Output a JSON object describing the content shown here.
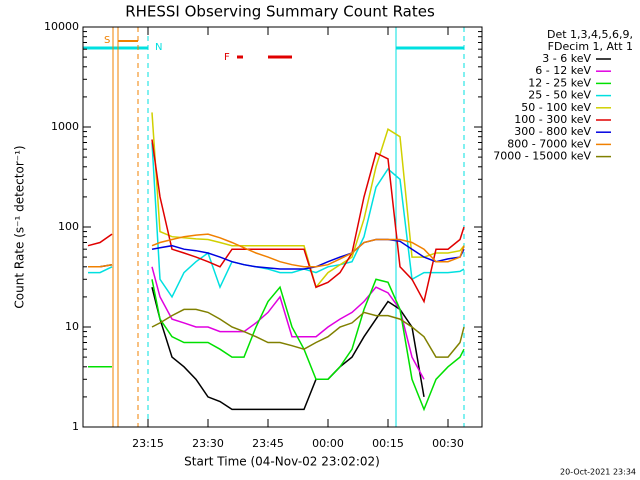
{
  "chart_data": {
    "type": "line",
    "title": "RHESSI Observing Summary Count Rates",
    "x_label": "Start Time (04-Nov-02 23:02:02)",
    "y_label": "Count Rate (s⁻¹ detector⁻¹)",
    "legend_header": [
      "Det 1,3,4,5,6,9,",
      "FDecim 1, Att 1"
    ],
    "annotations": [
      "S",
      "N",
      "F"
    ],
    "footer": "20-Oct-2021 23:34",
    "log_y": true,
    "xlim": [
      -1.25,
      98.5
    ],
    "ylim": [
      1,
      10000
    ],
    "xticks": [
      {
        "value": 15,
        "label": "23:15"
      },
      {
        "value": 30,
        "label": "23:30"
      },
      {
        "value": 45,
        "label": "23:45"
      },
      {
        "value": 60,
        "label": "00:00"
      },
      {
        "value": 75,
        "label": "00:15"
      },
      {
        "value": 90,
        "label": "00:30"
      }
    ],
    "yticks": [
      1,
      10,
      100,
      1000,
      10000
    ],
    "x": [
      0,
      3,
      6,
      9,
      12,
      16,
      18,
      21,
      24,
      27,
      30,
      33,
      36,
      39,
      42,
      45,
      48,
      51,
      54,
      57,
      60,
      63,
      66,
      69,
      72,
      75,
      78,
      81,
      84,
      87,
      90,
      93,
      94
    ],
    "series": [
      {
        "name": "3 - 6 keV",
        "color": "#000000",
        "values": [
          null,
          null,
          null,
          null,
          null,
          25,
          12,
          5,
          4,
          3,
          2,
          1.8,
          1.5,
          1.5,
          1.5,
          1.5,
          1.5,
          1.5,
          1.5,
          3,
          3,
          4,
          5,
          8,
          12,
          18,
          15,
          10,
          2,
          null,
          null,
          null,
          null
        ]
      },
      {
        "name": "6 - 12 keV",
        "color": "#e000e0",
        "values": [
          null,
          null,
          null,
          null,
          null,
          40,
          20,
          12,
          11,
          10,
          10,
          9,
          9,
          9,
          11,
          14,
          20,
          8,
          8,
          8,
          10,
          12,
          14,
          18,
          25,
          22,
          15,
          5,
          3,
          null,
          null,
          null,
          null
        ]
      },
      {
        "name": "12 - 25 keV",
        "color": "#00e000",
        "values": [
          4,
          4,
          4,
          null,
          null,
          30,
          12,
          8,
          7,
          7,
          7,
          6,
          5,
          5,
          10,
          18,
          25,
          10,
          6,
          3,
          3,
          4,
          6,
          15,
          30,
          28,
          15,
          3,
          1.5,
          3,
          4,
          5,
          6
        ]
      },
      {
        "name": "25 - 50 keV",
        "color": "#00e0e0",
        "values": [
          35,
          35,
          40,
          null,
          null,
          700,
          30,
          20,
          35,
          45,
          55,
          25,
          45,
          42,
          40,
          38,
          35,
          35,
          38,
          35,
          40,
          42,
          45,
          80,
          250,
          380,
          300,
          30,
          35,
          35,
          35,
          36,
          38
        ]
      },
      {
        "name": "50 - 100 keV",
        "color": "#d0d000",
        "values": [
          40,
          40,
          42,
          null,
          null,
          1400,
          90,
          80,
          78,
          76,
          75,
          70,
          65,
          65,
          65,
          65,
          65,
          65,
          65,
          25,
          35,
          42,
          50,
          120,
          400,
          950,
          800,
          50,
          50,
          55,
          55,
          58,
          65
        ]
      },
      {
        "name": "100 - 300 keV",
        "color": "#e00000",
        "values": [
          65,
          70,
          85,
          null,
          null,
          750,
          200,
          60,
          55,
          50,
          45,
          40,
          60,
          60,
          60,
          60,
          60,
          60,
          60,
          25,
          28,
          35,
          55,
          200,
          550,
          480,
          40,
          30,
          18,
          60,
          60,
          75,
          100
        ]
      },
      {
        "name": "300 - 800 keV",
        "color": "#0000e0",
        "values": [
          40,
          40,
          42,
          null,
          null,
          60,
          62,
          65,
          60,
          58,
          55,
          50,
          45,
          42,
          40,
          39,
          38,
          38,
          38,
          40,
          45,
          50,
          55,
          70,
          75,
          75,
          72,
          60,
          50,
          45,
          48,
          50,
          60
        ]
      },
      {
        "name": "800 - 7000 keV",
        "color": "#f08000",
        "values": [
          40,
          40,
          42,
          null,
          null,
          65,
          70,
          75,
          80,
          83,
          85,
          78,
          70,
          62,
          55,
          50,
          45,
          42,
          40,
          40,
          42,
          48,
          55,
          70,
          75,
          75,
          75,
          70,
          60,
          45,
          45,
          50,
          65
        ]
      },
      {
        "name": "7000 - 15000 keV",
        "color": "#808000",
        "values": [
          null,
          null,
          null,
          null,
          null,
          10,
          11,
          13,
          15,
          15,
          14,
          12,
          10,
          9,
          8,
          7,
          7,
          6.5,
          6,
          7,
          8,
          10,
          11,
          14,
          13,
          13,
          12,
          10,
          8,
          5,
          5,
          7,
          10
        ]
      }
    ]
  }
}
